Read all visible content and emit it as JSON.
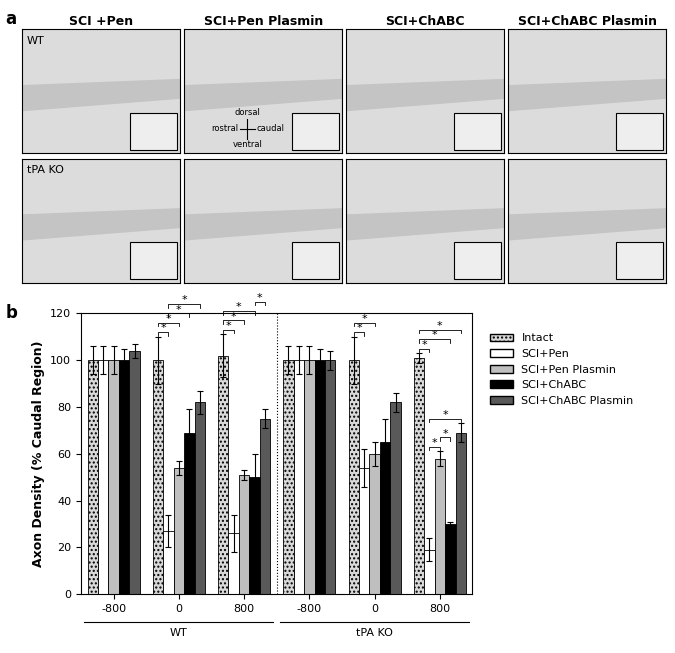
{
  "panel_a": {
    "label": "a",
    "columns": [
      "SCI +Pen",
      "SCI+Pen Plasmin",
      "SCI+ChABC",
      "SCI+ChABC Plasmin"
    ],
    "rows": [
      "WT",
      "tPA KO"
    ],
    "orientation": {
      "up": "dorsal",
      "left": "rostral",
      "right": "caudal",
      "down": "ventral"
    }
  },
  "panel_b": {
    "label": "b"
  },
  "chart_data": {
    "type": "bar",
    "ylabel": "Axon Density (% Caudal Region)",
    "groups": [
      {
        "name": "WT",
        "categories": [
          "-800",
          "0",
          "800"
        ]
      },
      {
        "name": "tPA KO",
        "categories": [
          "-800",
          "0",
          "800"
        ]
      }
    ],
    "ylim": [
      0,
      120
    ],
    "yticks": [
      0,
      20,
      40,
      60,
      80,
      100,
      120
    ],
    "legend": "right",
    "series": [
      {
        "name": "Intact",
        "color": "#d9d9d9",
        "values": [
          100,
          100,
          102,
          100,
          100,
          101
        ],
        "errors": [
          6,
          10,
          9,
          6,
          10,
          2
        ]
      },
      {
        "name": "SCI+Pen",
        "color": "#ffffff",
        "values": [
          100,
          27,
          26,
          100,
          54,
          19
        ],
        "errors": [
          6,
          7,
          8,
          6,
          8,
          5
        ]
      },
      {
        "name": "SCI+Pen Plasmin",
        "color": "#bfbfbf",
        "values": [
          100,
          54,
          51,
          100,
          60,
          58
        ],
        "errors": [
          6,
          3,
          2,
          6,
          5,
          3
        ]
      },
      {
        "name": "SCI+ChABC",
        "color": "#000000",
        "values": [
          100,
          69,
          50,
          100,
          65,
          30
        ],
        "errors": [
          5,
          10,
          10,
          5,
          10,
          1
        ]
      },
      {
        "name": "SCI+ChABC Plasmin",
        "color": "#595959",
        "values": [
          104,
          82,
          75,
          100,
          82,
          69
        ],
        "errors": [
          3,
          5,
          4,
          4,
          4,
          4
        ]
      }
    ],
    "significance_label": "*",
    "significance": [
      {
        "category": 1,
        "pair": [
          0,
          1
        ]
      },
      {
        "category": 1,
        "pair": [
          0,
          2
        ]
      },
      {
        "category": 1,
        "pair": [
          1,
          3
        ]
      },
      {
        "category": 1,
        "pair": [
          1,
          4
        ]
      },
      {
        "category": 2,
        "pair": [
          0,
          1
        ]
      },
      {
        "category": 2,
        "pair": [
          0,
          2
        ]
      },
      {
        "category": 2,
        "pair": [
          0,
          3
        ]
      },
      {
        "category": 2,
        "pair": [
          3,
          4
        ]
      },
      {
        "category": 4,
        "pair": [
          0,
          1
        ]
      },
      {
        "category": 4,
        "pair": [
          0,
          2
        ]
      },
      {
        "category": 5,
        "pair": [
          1,
          2
        ]
      },
      {
        "category": 5,
        "pair": [
          2,
          3
        ]
      },
      {
        "category": 5,
        "pair": [
          1,
          4
        ]
      },
      {
        "category": 5,
        "pair": [
          0,
          1
        ]
      },
      {
        "category": 5,
        "pair": [
          0,
          3
        ]
      },
      {
        "category": 5,
        "pair": [
          0,
          4
        ]
      }
    ]
  }
}
